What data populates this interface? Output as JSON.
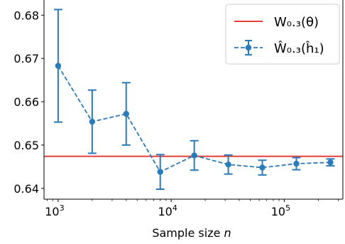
{
  "chart_data": {
    "type": "line",
    "title": "",
    "xlabel_prefix": "Sample size ",
    "xlabel_var": "n",
    "xscale": "log",
    "xlim": [
      750,
      330000
    ],
    "ylim": [
      0.6375,
      0.6835
    ],
    "yticks": [
      0.64,
      0.65,
      0.66,
      0.67,
      0.68
    ],
    "ytick_labels": [
      "0.64",
      "0.65",
      "0.66",
      "0.67",
      "0.68"
    ],
    "xticks": [
      1000,
      10000,
      100000
    ],
    "xtick_labels": [
      {
        "base": "10",
        "exp": "3"
      },
      {
        "base": "10",
        "exp": "4"
      },
      {
        "base": "10",
        "exp": "5"
      }
    ],
    "grid": false,
    "legend_position": "top-right",
    "reference_line": {
      "name": "W₀.₃(θ)",
      "value": 0.6474,
      "color": "#e8413c"
    },
    "series": [
      {
        "name": "Ŵ₀.₃(ĥ₁)",
        "color": "#2b7bb9",
        "style": "dashed-with-markers",
        "x": [
          1000,
          2000,
          4000,
          8000,
          16000,
          32000,
          64000,
          128000,
          256000
        ],
        "y": [
          0.6683,
          0.6554,
          0.6572,
          0.6438,
          0.6476,
          0.6455,
          0.6448,
          0.6457,
          0.646
        ],
        "err": [
          0.013,
          0.0073,
          0.0072,
          0.004,
          0.0034,
          0.0022,
          0.0017,
          0.0014,
          0.0008
        ]
      }
    ]
  }
}
